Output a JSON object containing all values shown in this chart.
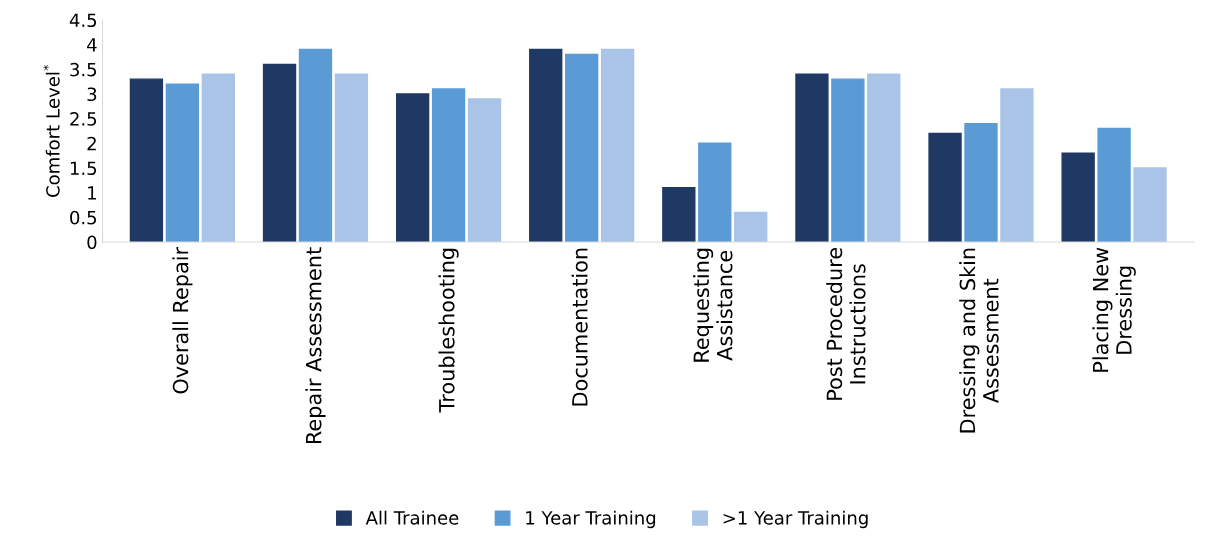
{
  "chart_data": {
    "type": "bar",
    "ylabel": "Comfort Level$^{*}$",
    "categories": [
      "Overall Repair",
      "Repair Assessment",
      "Troubleshooting",
      "Documentation",
      "Requesting\nAssistance",
      "Post Procedure\nInstructions",
      "Dressing and Skin\nAssessment",
      "Placing New\nDressing"
    ],
    "series": [
      {
        "name": "All Trainee",
        "color": "#1f3864",
        "values": [
          3.3,
          3.6,
          3.0,
          3.9,
          1.1,
          3.4,
          2.2,
          1.8
        ]
      },
      {
        "name": "1 Year Training",
        "color": "#5b9bd5",
        "values": [
          3.2,
          3.9,
          3.1,
          3.8,
          2.0,
          3.3,
          2.4,
          2.3
        ]
      },
      {
        "name": ">1 Year Training",
        "color": "#a9c4e6",
        "values": [
          3.4,
          3.4,
          2.9,
          3.9,
          0.6,
          3.4,
          3.1,
          1.5
        ]
      }
    ],
    "ylim": [
      0,
      4.5
    ],
    "yticks": [
      0,
      0.5,
      1,
      1.5,
      2,
      2.5,
      3,
      3.5,
      4,
      4.5
    ],
    "grid": false,
    "legend": "bottom"
  }
}
